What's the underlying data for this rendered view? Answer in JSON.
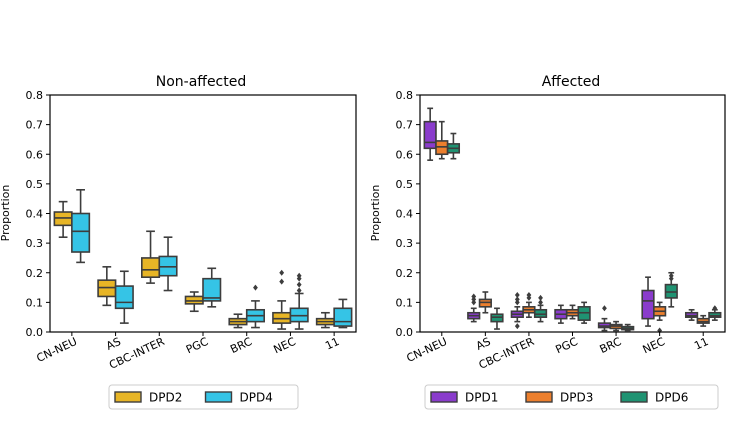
{
  "chart_data": [
    {
      "type": "box",
      "title": "Non-affected",
      "xlabel": "",
      "ylabel": "Proportion",
      "ylim": [
        0,
        0.8
      ],
      "yticks": [
        "0.0",
        "0.1",
        "0.2",
        "0.3",
        "0.4",
        "0.5",
        "0.6",
        "0.7",
        "0.8"
      ],
      "categories": [
        "CN-NEU",
        "AS",
        "CBC-INTER",
        "PGC",
        "BRC",
        "NEC",
        "11"
      ],
      "legend_position": "bottom-center",
      "series": [
        {
          "name": "DPD2",
          "color": "#e7b526",
          "boxes": [
            {
              "whislo": 0.32,
              "q1": 0.36,
              "med": 0.385,
              "q3": 0.405,
              "whishi": 0.44,
              "fliers": []
            },
            {
              "whislo": 0.09,
              "q1": 0.12,
              "med": 0.15,
              "q3": 0.175,
              "whishi": 0.22,
              "fliers": []
            },
            {
              "whislo": 0.165,
              "q1": 0.185,
              "med": 0.21,
              "q3": 0.25,
              "whishi": 0.34,
              "fliers": []
            },
            {
              "whislo": 0.07,
              "q1": 0.095,
              "med": 0.105,
              "q3": 0.12,
              "whishi": 0.135,
              "fliers": []
            },
            {
              "whislo": 0.015,
              "q1": 0.025,
              "med": 0.035,
              "q3": 0.045,
              "whishi": 0.06,
              "fliers": []
            },
            {
              "whislo": 0.01,
              "q1": 0.03,
              "med": 0.045,
              "q3": 0.065,
              "whishi": 0.105,
              "fliers": [
                0.17,
                0.2
              ]
            },
            {
              "whislo": 0.015,
              "q1": 0.025,
              "med": 0.035,
              "q3": 0.045,
              "whishi": 0.065,
              "fliers": []
            }
          ]
        },
        {
          "name": "DPD4",
          "color": "#35c4e6",
          "boxes": [
            {
              "whislo": 0.235,
              "q1": 0.27,
              "med": 0.34,
              "q3": 0.4,
              "whishi": 0.48,
              "fliers": []
            },
            {
              "whislo": 0.03,
              "q1": 0.08,
              "med": 0.1,
              "q3": 0.155,
              "whishi": 0.205,
              "fliers": []
            },
            {
              "whislo": 0.14,
              "q1": 0.19,
              "med": 0.22,
              "q3": 0.255,
              "whishi": 0.32,
              "fliers": []
            },
            {
              "whislo": 0.085,
              "q1": 0.105,
              "med": 0.115,
              "q3": 0.18,
              "whishi": 0.215,
              "fliers": []
            },
            {
              "whislo": 0.015,
              "q1": 0.035,
              "med": 0.055,
              "q3": 0.075,
              "whishi": 0.105,
              "fliers": [
                0.15
              ]
            },
            {
              "whislo": 0.01,
              "q1": 0.035,
              "med": 0.055,
              "q3": 0.08,
              "whishi": 0.13,
              "fliers": [
                0.14,
                0.16,
                0.18,
                0.19
              ]
            },
            {
              "whislo": 0.015,
              "q1": 0.02,
              "med": 0.035,
              "q3": 0.08,
              "whishi": 0.11,
              "fliers": []
            }
          ]
        }
      ]
    },
    {
      "type": "box",
      "title": "Affected",
      "xlabel": "",
      "ylabel": "Proportion",
      "ylim": [
        0,
        0.8
      ],
      "yticks": [
        "0.0",
        "0.1",
        "0.2",
        "0.3",
        "0.4",
        "0.5",
        "0.6",
        "0.7",
        "0.8"
      ],
      "categories": [
        "CN-NEU",
        "AS",
        "CBC-INTER",
        "PGC",
        "BRC",
        "NEC",
        "11"
      ],
      "legend_position": "bottom-center",
      "series": [
        {
          "name": "DPD1",
          "color": "#8a3ccc",
          "boxes": [
            {
              "whislo": 0.58,
              "q1": 0.62,
              "med": 0.64,
              "q3": 0.71,
              "whishi": 0.755,
              "fliers": []
            },
            {
              "whislo": 0.035,
              "q1": 0.045,
              "med": 0.055,
              "q3": 0.065,
              "whishi": 0.08,
              "fliers": [
                0.1,
                0.11,
                0.12
              ]
            },
            {
              "whislo": 0.035,
              "q1": 0.05,
              "med": 0.06,
              "q3": 0.07,
              "whishi": 0.085,
              "fliers": [
                0.02,
                0.1,
                0.11,
                0.125
              ]
            },
            {
              "whislo": 0.03,
              "q1": 0.045,
              "med": 0.06,
              "q3": 0.075,
              "whishi": 0.09,
              "fliers": []
            },
            {
              "whislo": 0.005,
              "q1": 0.015,
              "med": 0.02,
              "q3": 0.03,
              "whishi": 0.045,
              "fliers": [
                0.08
              ]
            },
            {
              "whislo": 0.02,
              "q1": 0.045,
              "med": 0.105,
              "q3": 0.14,
              "whishi": 0.185,
              "fliers": []
            },
            {
              "whislo": 0.04,
              "q1": 0.05,
              "med": 0.055,
              "q3": 0.065,
              "whishi": 0.075,
              "fliers": []
            }
          ]
        },
        {
          "name": "DPD3",
          "color": "#ec7f2d",
          "boxes": [
            {
              "whislo": 0.585,
              "q1": 0.6,
              "med": 0.625,
              "q3": 0.645,
              "whishi": 0.71,
              "fliers": []
            },
            {
              "whislo": 0.065,
              "q1": 0.085,
              "med": 0.1,
              "q3": 0.11,
              "whishi": 0.135,
              "fliers": []
            },
            {
              "whislo": 0.05,
              "q1": 0.065,
              "med": 0.075,
              "q3": 0.085,
              "whishi": 0.1,
              "fliers": [
                0.115,
                0.125
              ]
            },
            {
              "whislo": 0.045,
              "q1": 0.055,
              "med": 0.065,
              "q3": 0.075,
              "whishi": 0.09,
              "fliers": []
            },
            {
              "whislo": 0.005,
              "q1": 0.012,
              "med": 0.02,
              "q3": 0.025,
              "whishi": 0.035,
              "fliers": []
            },
            {
              "whislo": 0.04,
              "q1": 0.055,
              "med": 0.07,
              "q3": 0.085,
              "whishi": 0.1,
              "fliers": [
                0.005
              ]
            },
            {
              "whislo": 0.02,
              "q1": 0.03,
              "med": 0.035,
              "q3": 0.045,
              "whishi": 0.055,
              "fliers": []
            }
          ]
        },
        {
          "name": "DPD6",
          "color": "#1f9372",
          "boxes": [
            {
              "whislo": 0.585,
              "q1": 0.605,
              "med": 0.62,
              "q3": 0.635,
              "whishi": 0.67,
              "fliers": []
            },
            {
              "whislo": 0.01,
              "q1": 0.035,
              "med": 0.05,
              "q3": 0.06,
              "whishi": 0.08,
              "fliers": []
            },
            {
              "whislo": 0.035,
              "q1": 0.05,
              "med": 0.06,
              "q3": 0.075,
              "whishi": 0.09,
              "fliers": [
                0.1,
                0.115
              ]
            },
            {
              "whislo": 0.03,
              "q1": 0.04,
              "med": 0.065,
              "q3": 0.085,
              "whishi": 0.1,
              "fliers": []
            },
            {
              "whislo": 0.005,
              "q1": 0.008,
              "med": 0.012,
              "q3": 0.018,
              "whishi": 0.025,
              "fliers": []
            },
            {
              "whislo": 0.085,
              "q1": 0.115,
              "med": 0.135,
              "q3": 0.16,
              "whishi": 0.2,
              "fliers": [
                0.18,
                0.19
              ]
            },
            {
              "whislo": 0.04,
              "q1": 0.05,
              "med": 0.055,
              "q3": 0.065,
              "whishi": 0.075,
              "fliers": [
                0.08
              ]
            }
          ]
        }
      ]
    }
  ]
}
